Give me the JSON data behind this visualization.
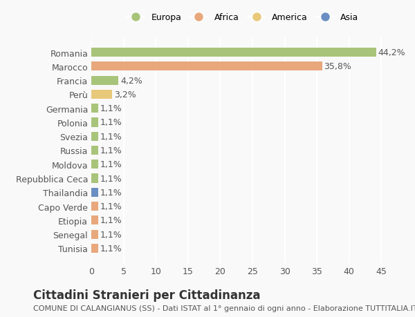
{
  "categories": [
    "Tunisia",
    "Senegal",
    "Etiopia",
    "Capo Verde",
    "Thailandia",
    "Repubblica Ceca",
    "Moldova",
    "Russia",
    "Svezia",
    "Polonia",
    "Germania",
    "Perù",
    "Francia",
    "Marocco",
    "Romania"
  ],
  "values": [
    1.1,
    1.1,
    1.1,
    1.1,
    1.1,
    1.1,
    1.1,
    1.1,
    1.1,
    1.1,
    1.1,
    3.2,
    4.2,
    35.8,
    44.2
  ],
  "labels": [
    "1,1%",
    "1,1%",
    "1,1%",
    "1,1%",
    "1,1%",
    "1,1%",
    "1,1%",
    "1,1%",
    "1,1%",
    "1,1%",
    "1,1%",
    "3,2%",
    "4,2%",
    "35,8%",
    "44,2%"
  ],
  "colors": [
    "#e8a87c",
    "#e8a87c",
    "#e8a87c",
    "#e8a87c",
    "#6b8fc2",
    "#a8c47a",
    "#a8c47a",
    "#a8c47a",
    "#a8c47a",
    "#a8c47a",
    "#a8c47a",
    "#e8c97a",
    "#a8c47a",
    "#e8a87c",
    "#a8c47a"
  ],
  "legend": [
    {
      "label": "Europa",
      "color": "#a8c47a"
    },
    {
      "label": "Africa",
      "color": "#e8a87c"
    },
    {
      "label": "America",
      "color": "#e8c97a"
    },
    {
      "label": "Asia",
      "color": "#6b8fc2"
    }
  ],
  "title": "Cittadini Stranieri per Cittadinanza",
  "subtitle": "COMUNE DI CALANGIANUS (SS) - Dati ISTAT al 1° gennaio di ogni anno - Elaborazione TUTTITALIA.IT",
  "xlim": [
    0,
    47
  ],
  "xticks": [
    0,
    5,
    10,
    15,
    20,
    25,
    30,
    35,
    40,
    45
  ],
  "background_color": "#f9f9f9",
  "grid_color": "#ffffff",
  "bar_height": 0.65,
  "title_fontsize": 12,
  "subtitle_fontsize": 8,
  "label_fontsize": 9,
  "tick_fontsize": 9
}
